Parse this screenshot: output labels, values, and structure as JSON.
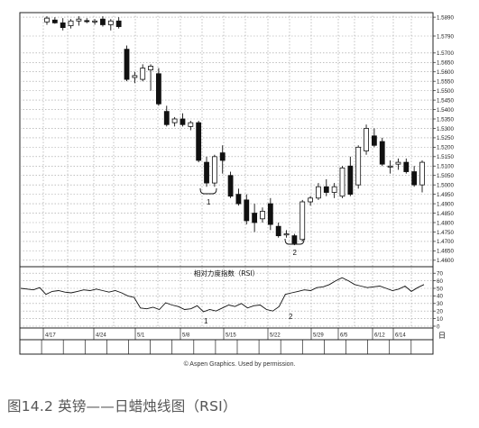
{
  "chart_data": [
    {
      "type": "candlestick",
      "title": "",
      "x_tick_labels": [
        "4/17",
        "4/24",
        "5/1",
        "5/8",
        "5/15",
        "5/22",
        "5/29",
        "6/5",
        "6/12",
        "6/14"
      ],
      "y_tick_labels": [
        "1.5890",
        "1.5790",
        "1.5700",
        "1.5650",
        "1.5600",
        "1.5550",
        "1.5500",
        "1.5450",
        "1.5400",
        "1.5350",
        "1.5300",
        "1.5250",
        "1.5200",
        "1.5150",
        "1.5100",
        "1.5050",
        "1.5000",
        "1.4950",
        "1.4900",
        "1.4850",
        "1.4800",
        "1.4750",
        "1.4700",
        "1.4650",
        "1.4600"
      ],
      "ylim": [
        1.458,
        1.59
      ],
      "grid": true,
      "annotations": [
        "1",
        "2"
      ],
      "candles": [
        {
          "x": 0,
          "open": 1.5865,
          "high": 1.5895,
          "low": 1.585,
          "close": 1.5885
        },
        {
          "x": 1,
          "open": 1.5875,
          "high": 1.589,
          "low": 1.5855,
          "close": 1.586
        },
        {
          "x": 2,
          "open": 1.586,
          "high": 1.5885,
          "low": 1.582,
          "close": 1.5835
        },
        {
          "x": 3,
          "open": 1.5845,
          "high": 1.588,
          "low": 1.583,
          "close": 1.587
        },
        {
          "x": 4,
          "open": 1.587,
          "high": 1.5895,
          "low": 1.5845,
          "close": 1.588
        },
        {
          "x": 5,
          "open": 1.5872,
          "high": 1.5885,
          "low": 1.5858,
          "close": 1.5868
        },
        {
          "x": 6,
          "open": 1.5866,
          "high": 1.588,
          "low": 1.585,
          "close": 1.587
        },
        {
          "x": 7,
          "open": 1.588,
          "high": 1.5895,
          "low": 1.584,
          "close": 1.585
        },
        {
          "x": 8,
          "open": 1.585,
          "high": 1.588,
          "low": 1.582,
          "close": 1.587
        },
        {
          "x": 9,
          "open": 1.587,
          "high": 1.589,
          "low": 1.583,
          "close": 1.584
        },
        {
          "x": 10,
          "open": 1.572,
          "high": 1.574,
          "low": 1.555,
          "close": 1.556
        },
        {
          "x": 11,
          "open": 1.557,
          "high": 1.56,
          "low": 1.554,
          "close": 1.558
        },
        {
          "x": 12,
          "open": 1.556,
          "high": 1.564,
          "low": 1.555,
          "close": 1.562
        },
        {
          "x": 13,
          "open": 1.561,
          "high": 1.564,
          "low": 1.55,
          "close": 1.563
        },
        {
          "x": 14,
          "open": 1.559,
          "high": 1.562,
          "low": 1.542,
          "close": 1.543
        },
        {
          "x": 15,
          "open": 1.539,
          "high": 1.542,
          "low": 1.531,
          "close": 1.532
        },
        {
          "x": 16,
          "open": 1.533,
          "high": 1.536,
          "low": 1.531,
          "close": 1.535
        },
        {
          "x": 17,
          "open": 1.535,
          "high": 1.538,
          "low": 1.531,
          "close": 1.532
        },
        {
          "x": 18,
          "open": 1.531,
          "high": 1.534,
          "low": 1.529,
          "close": 1.533
        },
        {
          "x": 19,
          "open": 1.533,
          "high": 1.534,
          "low": 1.512,
          "close": 1.513
        },
        {
          "x": 20,
          "open": 1.512,
          "high": 1.515,
          "low": 1.499,
          "close": 1.501
        },
        {
          "x": 21,
          "open": 1.501,
          "high": 1.516,
          "low": 1.499,
          "close": 1.515
        },
        {
          "x": 22,
          "open": 1.517,
          "high": 1.521,
          "low": 1.506,
          "close": 1.513
        },
        {
          "x": 23,
          "open": 1.505,
          "high": 1.507,
          "low": 1.493,
          "close": 1.494
        },
        {
          "x": 24,
          "open": 1.495,
          "high": 1.498,
          "low": 1.489,
          "close": 1.49
        },
        {
          "x": 25,
          "open": 1.492,
          "high": 1.495,
          "low": 1.479,
          "close": 1.481
        },
        {
          "x": 26,
          "open": 1.485,
          "high": 1.49,
          "low": 1.475,
          "close": 1.48
        },
        {
          "x": 27,
          "open": 1.482,
          "high": 1.488,
          "low": 1.48,
          "close": 1.486
        },
        {
          "x": 28,
          "open": 1.49,
          "high": 1.493,
          "low": 1.476,
          "close": 1.479
        },
        {
          "x": 29,
          "open": 1.478,
          "high": 1.48,
          "low": 1.472,
          "close": 1.473
        },
        {
          "x": 30,
          "open": 1.474,
          "high": 1.476,
          "low": 1.472,
          "close": 1.474
        },
        {
          "x": 31,
          "open": 1.473,
          "high": 1.474,
          "low": 1.468,
          "close": 1.469
        },
        {
          "x": 32,
          "open": 1.471,
          "high": 1.492,
          "low": 1.47,
          "close": 1.491
        },
        {
          "x": 33,
          "open": 1.491,
          "high": 1.494,
          "low": 1.489,
          "close": 1.493
        },
        {
          "x": 34,
          "open": 1.493,
          "high": 1.501,
          "low": 1.492,
          "close": 1.499
        },
        {
          "x": 35,
          "open": 1.499,
          "high": 1.503,
          "low": 1.494,
          "close": 1.496
        },
        {
          "x": 36,
          "open": 1.496,
          "high": 1.501,
          "low": 1.493,
          "close": 1.499
        },
        {
          "x": 37,
          "open": 1.494,
          "high": 1.51,
          "low": 1.493,
          "close": 1.509
        },
        {
          "x": 38,
          "open": 1.51,
          "high": 1.515,
          "low": 1.494,
          "close": 1.495
        },
        {
          "x": 39,
          "open": 1.5,
          "high": 1.521,
          "low": 1.498,
          "close": 1.52
        },
        {
          "x": 40,
          "open": 1.518,
          "high": 1.532,
          "low": 1.516,
          "close": 1.53
        },
        {
          "x": 41,
          "open": 1.526,
          "high": 1.53,
          "low": 1.52,
          "close": 1.521
        },
        {
          "x": 42,
          "open": 1.523,
          "high": 1.525,
          "low": 1.51,
          "close": 1.511
        },
        {
          "x": 43,
          "open": 1.51,
          "high": 1.513,
          "low": 1.506,
          "close": 1.51
        },
        {
          "x": 44,
          "open": 1.511,
          "high": 1.514,
          "low": 1.508,
          "close": 1.512
        },
        {
          "x": 45,
          "open": 1.512,
          "high": 1.514,
          "low": 1.506,
          "close": 1.507
        },
        {
          "x": 46,
          "open": 1.507,
          "high": 1.51,
          "low": 1.499,
          "close": 1.5
        },
        {
          "x": 47,
          "open": 1.5,
          "high": 1.513,
          "low": 1.496,
          "close": 1.512
        }
      ]
    },
    {
      "type": "line",
      "title": "相对力度指数（RSI）",
      "y_tick_labels": [
        "70",
        "60",
        "50",
        "40",
        "30",
        "20",
        "10",
        "0"
      ],
      "ylim": [
        0,
        75
      ],
      "grid": true,
      "annotations": [
        "1",
        "2"
      ],
      "series": [
        {
          "values": [
            50,
            49,
            48,
            51,
            42,
            46,
            47,
            45,
            44,
            46,
            48,
            47,
            49,
            47,
            45,
            47,
            44,
            40,
            38,
            24,
            23,
            25,
            22,
            31,
            28,
            26,
            22,
            23,
            27,
            19,
            22,
            20,
            24,
            28,
            26,
            30,
            24,
            27,
            28,
            22,
            20,
            26,
            42,
            44,
            46,
            48,
            47,
            51,
            52,
            55,
            60,
            64,
            60,
            55,
            53,
            51,
            52,
            53,
            50,
            47,
            49,
            53,
            46,
            51,
            55
          ]
        }
      ]
    }
  ],
  "credit": "© Aspen Graphics. Used by permission.",
  "caption": "图14.2 英镑——日蜡烛线图（RSI）"
}
